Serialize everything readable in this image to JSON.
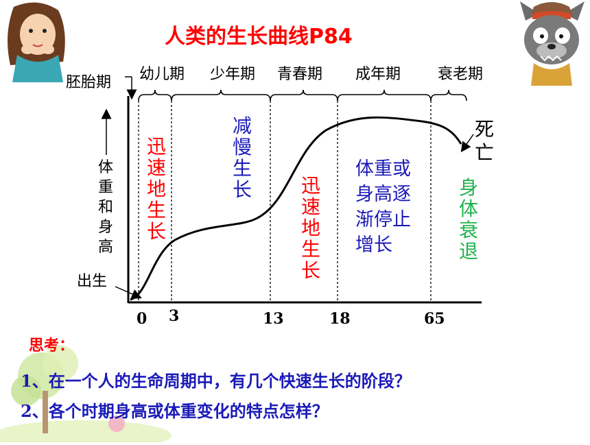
{
  "title": "人类的生长曲线P84",
  "stages": {
    "embryo": "胚胎期",
    "infancy": "幼儿期",
    "childhood": "少年期",
    "adolescence": "青春期",
    "adulthood": "成年期",
    "old_age": "衰老期"
  },
  "y_axis_label": "体重和身高",
  "birth_label": "出生",
  "death_label": "死亡",
  "x_ticks": [
    "0",
    "3",
    "13",
    "18",
    "65"
  ],
  "phase_notes": {
    "infancy": "迅速地生长",
    "childhood": "减慢生长",
    "adolescence": "迅速地生长",
    "adulthood": [
      "体重或",
      "身高逐",
      "渐停止",
      "增长"
    ],
    "old_age": "身体衰退"
  },
  "colors": {
    "title": "#ff0000",
    "fast_growth": "#ff0000",
    "slow_growth": "#1a1ab8",
    "decline": "#22b24c"
  },
  "think": {
    "heading": "思考：",
    "q1": "1、在一个人的生命周期中，有几个快速生长的阶段？",
    "q2": "2、各个时期身高或体重变化的特点怎样？"
  }
}
